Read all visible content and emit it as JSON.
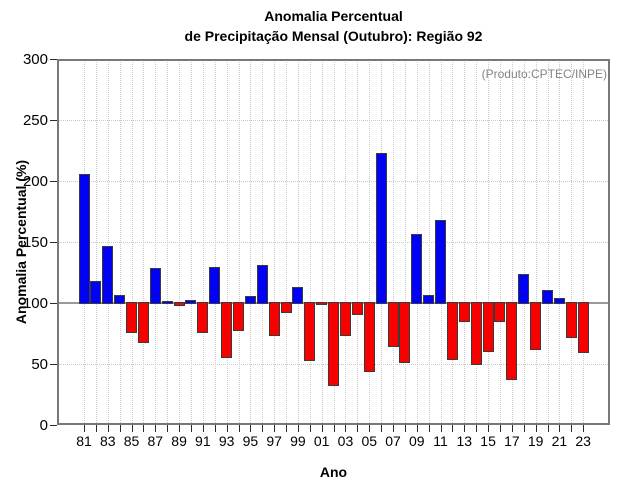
{
  "title": {
    "line1": "Anomalia Percentual",
    "line2": "de Precipitação Mensal (Outubro): Região 92"
  },
  "annotation": "(Produto:CPTEC/INPE)",
  "axes": {
    "y_label": "Anomalia Percentual (%)",
    "x_label": "Ano",
    "y_ticks": [
      0,
      50,
      100,
      150,
      200,
      250,
      300
    ]
  },
  "colors": {
    "above_baseline": "#0202f2",
    "below_baseline": "#f60000",
    "bar_border": "#3a3a3a",
    "grid": "#c9c9c9",
    "baseline": "#9a9a9a",
    "frame": "#787878",
    "annotation_text": "#848484"
  },
  "chart_data": {
    "type": "bar",
    "title": "Anomalia Percentual de Precipitação Mensal (Outubro): Região 92",
    "xlabel": "Ano",
    "ylabel": "Anomalia Percentual (%)",
    "ylim": [
      0,
      300
    ],
    "baseline": 100,
    "grid": true,
    "categories": [
      "81",
      "82",
      "83",
      "84",
      "85",
      "86",
      "87",
      "88",
      "89",
      "90",
      "91",
      "92",
      "93",
      "94",
      "95",
      "96",
      "97",
      "98",
      "99",
      "00",
      "01",
      "02",
      "03",
      "04",
      "05",
      "06",
      "07",
      "08",
      "09",
      "10",
      "11",
      "12",
      "13",
      "14",
      "15",
      "16",
      "17",
      "18",
      "19",
      "20",
      "21",
      "22",
      "23"
    ],
    "values": [
      205,
      117,
      146,
      106,
      76,
      68,
      128,
      100,
      98,
      102,
      76,
      129,
      56,
      78,
      105,
      130,
      74,
      93,
      112,
      53,
      99,
      33,
      74,
      91,
      44,
      222,
      65,
      52,
      156,
      106,
      167,
      54,
      85,
      50,
      61,
      85,
      38,
      123,
      62,
      110,
      103,
      72,
      60
    ],
    "labeled_categories": [
      "81",
      "83",
      "85",
      "87",
      "89",
      "91",
      "93",
      "95",
      "97",
      "99",
      "01",
      "03",
      "05",
      "07",
      "09",
      "11",
      "13",
      "15",
      "17",
      "19",
      "21",
      "23"
    ],
    "color_rule": "blue if value >= 100 else red"
  }
}
